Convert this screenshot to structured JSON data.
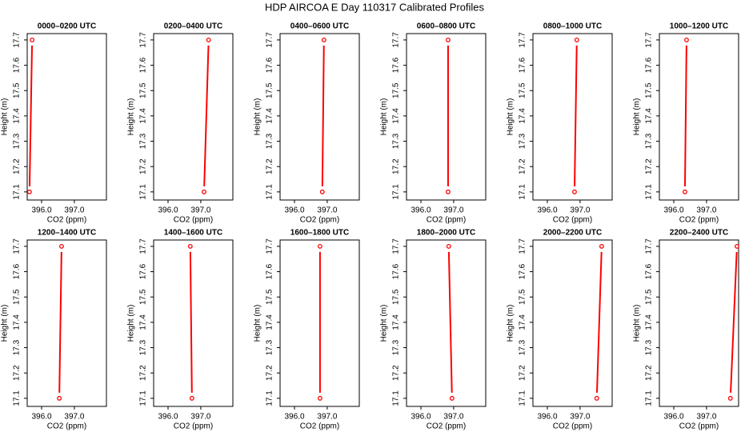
{
  "title": "HDP AIRCOA E  Day 110317  Calibrated Profiles",
  "chart_data": [
    {
      "type": "line",
      "title": "0000–0200 UTC",
      "x_label": "CO2 (ppm)",
      "y_label": "Height (m)",
      "color": "#ff0000",
      "x": [
        395.63,
        395.71
      ],
      "values": [
        17.1,
        17.7
      ],
      "xlim": [
        395.56,
        397.98
      ],
      "ylim": [
        17.068,
        17.725
      ],
      "xticks": [
        {
          "value": 396,
          "label": "396.0"
        },
        {
          "value": 397,
          "label": "397.0"
        }
      ],
      "yticks": [
        17.1,
        17.2,
        17.3,
        17.4,
        17.5,
        17.6,
        17.7
      ]
    },
    {
      "type": "line",
      "title": "0200–0400 UTC",
      "x_label": "CO2 (ppm)",
      "y_label": "Height (m)",
      "color": "#ff0000",
      "x": [
        397.1,
        397.24
      ],
      "values": [
        17.1,
        17.7
      ],
      "xlim": [
        395.56,
        397.98
      ],
      "ylim": [
        17.068,
        17.725
      ],
      "xticks": [
        {
          "value": 396,
          "label": "396.0"
        },
        {
          "value": 397,
          "label": "397.0"
        }
      ],
      "yticks": [
        17.1,
        17.2,
        17.3,
        17.4,
        17.5,
        17.6,
        17.7
      ]
    },
    {
      "type": "line",
      "title": "0400–0600 UTC",
      "x_label": "CO2 (ppm)",
      "y_label": "Height (m)",
      "color": "#ff0000",
      "x": [
        396.85,
        396.9
      ],
      "values": [
        17.1,
        17.7
      ],
      "xlim": [
        395.56,
        397.98
      ],
      "ylim": [
        17.068,
        17.725
      ],
      "xticks": [
        {
          "value": 396,
          "label": "396.0"
        },
        {
          "value": 397,
          "label": "397.0"
        }
      ],
      "yticks": [
        17.1,
        17.2,
        17.3,
        17.4,
        17.5,
        17.6,
        17.7
      ]
    },
    {
      "type": "line",
      "title": "0600–0800 UTC",
      "x_label": "CO2 (ppm)",
      "y_label": "Height (m)",
      "color": "#ff0000",
      "x": [
        396.83,
        396.83
      ],
      "values": [
        17.1,
        17.7
      ],
      "xlim": [
        395.56,
        397.98
      ],
      "ylim": [
        17.068,
        17.725
      ],
      "xticks": [
        {
          "value": 396,
          "label": "396.0"
        },
        {
          "value": 397,
          "label": "397.0"
        }
      ],
      "yticks": [
        17.1,
        17.2,
        17.3,
        17.4,
        17.5,
        17.6,
        17.7
      ]
    },
    {
      "type": "line",
      "title": "0800–1000 UTC",
      "x_label": "CO2 (ppm)",
      "y_label": "Height (m)",
      "color": "#ff0000",
      "x": [
        396.83,
        396.9
      ],
      "values": [
        17.1,
        17.7
      ],
      "xlim": [
        395.56,
        397.98
      ],
      "ylim": [
        17.068,
        17.725
      ],
      "xticks": [
        {
          "value": 396,
          "label": "396.0"
        },
        {
          "value": 397,
          "label": "397.0"
        }
      ],
      "yticks": [
        17.1,
        17.2,
        17.3,
        17.4,
        17.5,
        17.6,
        17.7
      ]
    },
    {
      "type": "line",
      "title": "1000–1200 UTC",
      "x_label": "CO2 (ppm)",
      "y_label": "Height (m)",
      "color": "#ff0000",
      "x": [
        396.34,
        396.39
      ],
      "values": [
        17.1,
        17.7
      ],
      "xlim": [
        395.56,
        397.98
      ],
      "ylim": [
        17.068,
        17.725
      ],
      "xticks": [
        {
          "value": 396,
          "label": "396.0"
        },
        {
          "value": 397,
          "label": "397.0"
        }
      ],
      "yticks": [
        17.1,
        17.2,
        17.3,
        17.4,
        17.5,
        17.6,
        17.7
      ]
    },
    {
      "type": "line",
      "title": "1200–1400 UTC",
      "x_label": "CO2 (ppm)",
      "y_label": "Height (m)",
      "color": "#ff0000",
      "x": [
        396.54,
        396.61
      ],
      "values": [
        17.1,
        17.7
      ],
      "xlim": [
        395.56,
        397.98
      ],
      "ylim": [
        17.068,
        17.725
      ],
      "xticks": [
        {
          "value": 396,
          "label": "396.0"
        },
        {
          "value": 397,
          "label": "397.0"
        }
      ],
      "yticks": [
        17.1,
        17.2,
        17.3,
        17.4,
        17.5,
        17.6,
        17.7
      ]
    },
    {
      "type": "line",
      "title": "1400–1600 UTC",
      "x_label": "CO2 (ppm)",
      "y_label": "Height (m)",
      "color": "#ff0000",
      "x": [
        396.73,
        396.68
      ],
      "values": [
        17.1,
        17.7
      ],
      "xlim": [
        395.56,
        397.98
      ],
      "ylim": [
        17.068,
        17.725
      ],
      "xticks": [
        {
          "value": 396,
          "label": "396.0"
        },
        {
          "value": 397,
          "label": "397.0"
        }
      ],
      "yticks": [
        17.1,
        17.2,
        17.3,
        17.4,
        17.5,
        17.6,
        17.7
      ]
    },
    {
      "type": "line",
      "title": "1600–1800 UTC",
      "x_label": "CO2 (ppm)",
      "y_label": "Height (m)",
      "color": "#ff0000",
      "x": [
        396.78,
        396.78
      ],
      "values": [
        17.1,
        17.7
      ],
      "xlim": [
        395.56,
        397.98
      ],
      "ylim": [
        17.068,
        17.725
      ],
      "xticks": [
        {
          "value": 396,
          "label": "396.0"
        },
        {
          "value": 397,
          "label": "397.0"
        }
      ],
      "yticks": [
        17.1,
        17.2,
        17.3,
        17.4,
        17.5,
        17.6,
        17.7
      ]
    },
    {
      "type": "line",
      "title": "1800–2000 UTC",
      "x_label": "CO2 (ppm)",
      "y_label": "Height (m)",
      "color": "#ff0000",
      "x": [
        396.95,
        396.85
      ],
      "values": [
        17.1,
        17.7
      ],
      "xlim": [
        395.56,
        397.98
      ],
      "ylim": [
        17.068,
        17.725
      ],
      "xticks": [
        {
          "value": 396,
          "label": "396.0"
        },
        {
          "value": 397,
          "label": "397.0"
        }
      ],
      "yticks": [
        17.1,
        17.2,
        17.3,
        17.4,
        17.5,
        17.6,
        17.7
      ]
    },
    {
      "type": "line",
      "title": "2000–2200 UTC",
      "x_label": "CO2 (ppm)",
      "y_label": "Height (m)",
      "color": "#ff0000",
      "x": [
        397.51,
        397.66
      ],
      "values": [
        17.1,
        17.7
      ],
      "xlim": [
        395.56,
        397.98
      ],
      "ylim": [
        17.068,
        17.725
      ],
      "xticks": [
        {
          "value": 396,
          "label": "396.0"
        },
        {
          "value": 397,
          "label": "397.0"
        }
      ],
      "yticks": [
        17.1,
        17.2,
        17.3,
        17.4,
        17.5,
        17.6,
        17.7
      ]
    },
    {
      "type": "line",
      "title": "2200–2400 UTC",
      "x_label": "CO2 (ppm)",
      "y_label": "Height (m)",
      "color": "#ff0000",
      "x": [
        397.73,
        397.93
      ],
      "values": [
        17.1,
        17.7
      ],
      "xlim": [
        395.56,
        397.98
      ],
      "ylim": [
        17.068,
        17.725
      ],
      "xticks": [
        {
          "value": 396,
          "label": "396.0"
        },
        {
          "value": 397,
          "label": "397.0"
        }
      ],
      "yticks": [
        17.1,
        17.2,
        17.3,
        17.4,
        17.5,
        17.6,
        17.7
      ]
    }
  ]
}
